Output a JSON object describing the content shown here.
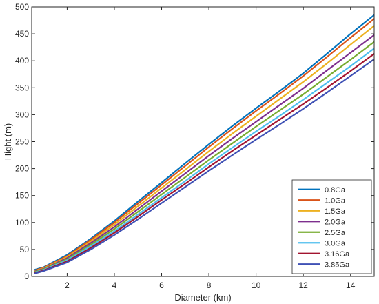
{
  "chart_data": {
    "type": "line",
    "xlabel": "Diameter (km)",
    "ylabel": "Hight (m)",
    "xlim": [
      0.5,
      15
    ],
    "ylim": [
      0,
      500
    ],
    "xticks": [
      2,
      4,
      6,
      8,
      10,
      12,
      14
    ],
    "yticks": [
      0,
      50,
      100,
      150,
      200,
      250,
      300,
      350,
      400,
      450,
      500
    ],
    "grid": false,
    "legend_position": "bottom-right",
    "x": [
      0.6,
      1,
      2,
      3,
      4,
      5,
      6,
      7,
      8,
      9,
      10,
      11,
      12,
      13,
      14,
      15
    ],
    "series": [
      {
        "name": "0.8Ga",
        "color": "#0072BD",
        "values": [
          12,
          17,
          40,
          70,
          103,
          139,
          174,
          210,
          245,
          279,
          312,
          344,
          377,
          413,
          450,
          485
        ]
      },
      {
        "name": "1.0Ga",
        "color": "#D95319",
        "values": [
          11,
          16,
          38,
          68,
          100,
          135,
          170,
          205,
          240,
          274,
          307,
          339,
          372,
          407,
          443,
          478
        ]
      },
      {
        "name": "1.5Ga",
        "color": "#EDB120",
        "values": [
          10,
          15,
          36,
          65,
          96,
          130,
          164,
          198,
          232,
          265,
          297,
          329,
          361,
          395,
          430,
          465
        ]
      },
      {
        "name": "2.0Ga",
        "color": "#7E2F8E",
        "values": [
          9,
          14,
          34,
          62,
          92,
          125,
          158,
          191,
          224,
          256,
          287,
          318,
          349,
          382,
          415,
          448
        ]
      },
      {
        "name": "2.5Ga",
        "color": "#77AC30",
        "values": [
          8,
          13,
          32,
          59,
          88,
          120,
          152,
          184,
          216,
          247,
          278,
          308,
          338,
          370,
          402,
          435
        ]
      },
      {
        "name": "3.0Ga",
        "color": "#4DBEEE",
        "values": [
          7,
          12,
          30,
          56,
          84,
          115,
          146,
          177,
          209,
          239,
          269,
          298,
          328,
          359,
          390,
          423
        ]
      },
      {
        "name": "3.16Ga",
        "color": "#A2142F",
        "values": [
          6,
          11,
          28,
          53,
          81,
          111,
          142,
          172,
          203,
          233,
          262,
          291,
          320,
          350,
          381,
          413
        ]
      },
      {
        "name": "3.85Ga",
        "color": "#3F51B5",
        "values": [
          5,
          10,
          26,
          50,
          77,
          106,
          136,
          166,
          196,
          225,
          254,
          282,
          311,
          341,
          372,
          403
        ]
      }
    ]
  }
}
